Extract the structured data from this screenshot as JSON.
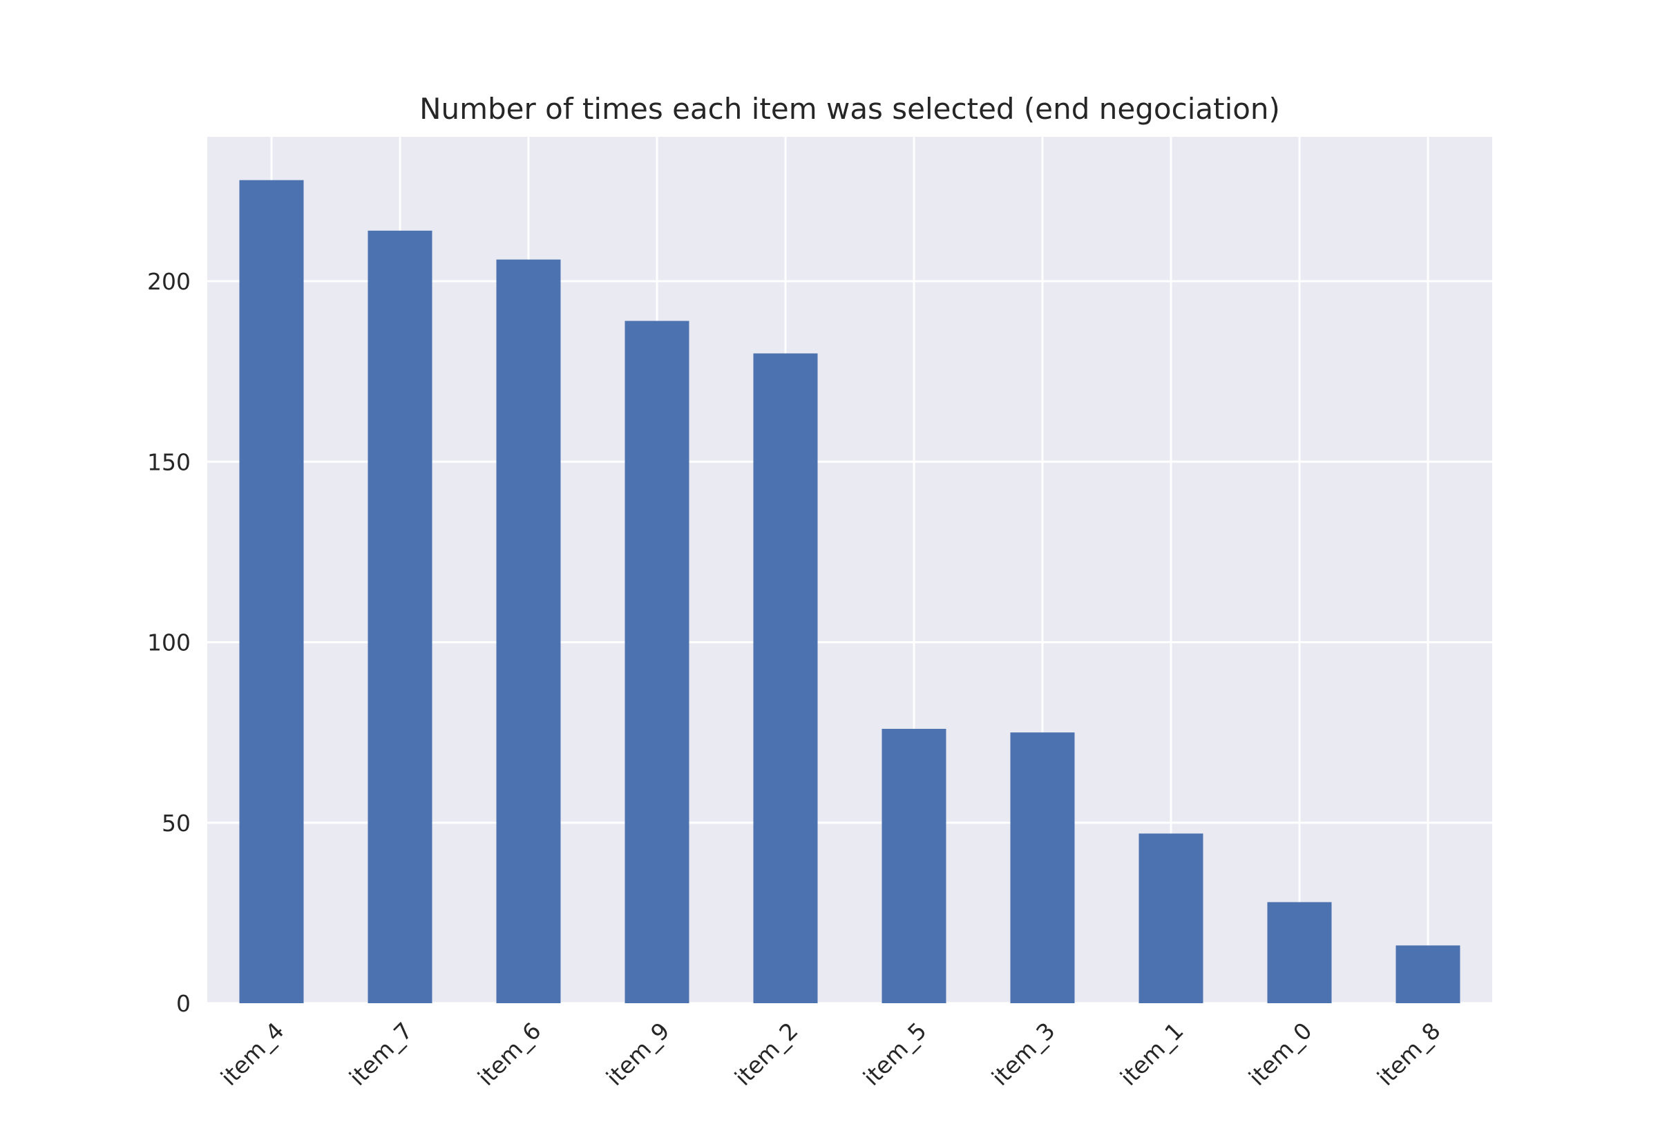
{
  "chart_data": {
    "type": "bar",
    "title": "Number of times each item was selected (end negociation)",
    "xlabel": "",
    "ylabel": "",
    "categories": [
      "item_4",
      "item_7",
      "item_6",
      "item_9",
      "item_2",
      "item_5",
      "item_3",
      "item_1",
      "item_0",
      "item_8"
    ],
    "values": [
      228,
      214,
      206,
      189,
      180,
      76,
      75,
      47,
      28,
      16
    ],
    "ylim": [
      0,
      240
    ],
    "yticks": [
      0,
      50,
      100,
      150,
      200
    ],
    "grid": true,
    "legend": "none",
    "colors": {
      "bar": "#4c72b0",
      "plot_background": "#eaeaf2",
      "grid": "#ffffff",
      "text": "#262626"
    }
  }
}
